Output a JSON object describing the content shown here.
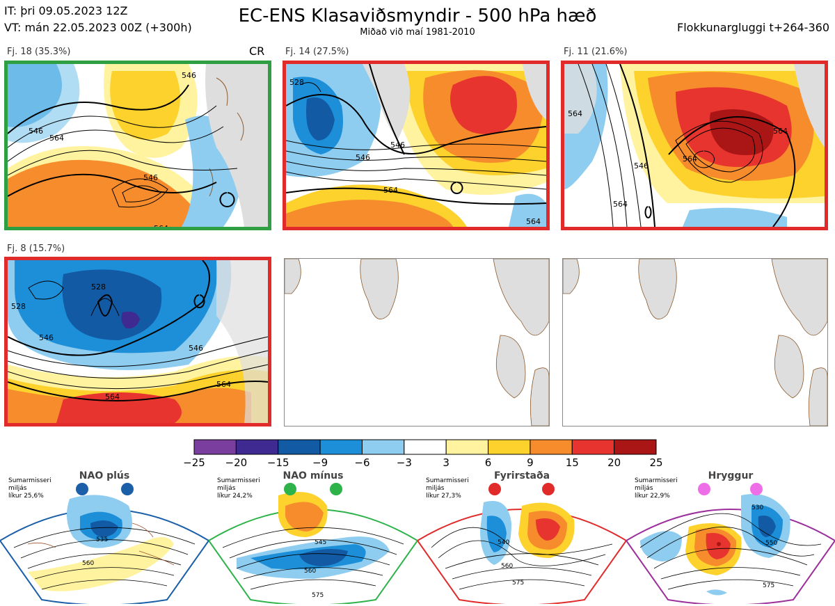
{
  "header": {
    "it": "IT: þri 09.05.2023 12Z",
    "vt": "VT: mán 22.05.2023 00Z  (+300h)",
    "title": "EC-ENS Klasaviðsmyndir - 500 hPa hæð",
    "subtitle": "Miðað við maí 1981-2010",
    "window": "Flokkunargluggi t+264-360",
    "cr": "CR"
  },
  "panels": [
    {
      "label": "Fj. 18 (35.3%)",
      "border": "#2ea043",
      "contours": [
        "564",
        "546",
        "546",
        "564",
        "546"
      ]
    },
    {
      "label": "Fj. 14 (27.5%)",
      "border": "#e12b2b",
      "contours": [
        "528",
        "546",
        "564",
        "546",
        "564"
      ]
    },
    {
      "label": "Fj. 11 (21.6%)",
      "border": "#e12b2b",
      "contours": [
        "546",
        "564",
        "564",
        "564",
        "564"
      ]
    },
    {
      "label": "Fj. 8 (15.7%)",
      "border": "#e12b2b",
      "contours": [
        "528",
        "528",
        "546",
        "546",
        "564",
        "564"
      ]
    }
  ],
  "colors": {
    "green": "#2ea043",
    "red": "#e12b2b",
    "blue": "#1a5fa8",
    "purple": "#9b2f9b",
    "land": "#dedede"
  },
  "chart_data": {
    "type": "heatmap",
    "colorbar": {
      "ticks": [
        "−25",
        "−20",
        "−15",
        "−9",
        "−6",
        "−3",
        "3",
        "6",
        "9",
        "15",
        "20",
        "25"
      ],
      "colors": [
        "#7a3e9e",
        "#3f2a92",
        "#135aa5",
        "#1d8fd8",
        "#8ecdf0",
        "#ffffff",
        "#fff3a0",
        "#fdd22c",
        "#f68c2c",
        "#e8342f",
        "#aa1616"
      ]
    },
    "regimes": [
      {
        "name": "NAO plús",
        "note": [
          "Sumarmisseri",
          "miljás",
          "líkur 25,6%"
        ],
        "contours": [
          "535",
          "560"
        ],
        "dot_color": "#1a5fa8",
        "border": "#1a5fa8"
      },
      {
        "name": "NAO mínus",
        "note": [
          "Sumarmisseri",
          "miljás",
          "líkur 24,2%"
        ],
        "contours": [
          "545",
          "560",
          "575"
        ],
        "dot_color": "#2db34a",
        "border": "#2db34a"
      },
      {
        "name": "Fyrirstaða",
        "note": [
          "Sumarmisseri",
          "miljás",
          "líkur 27,3%"
        ],
        "contours": [
          "540",
          "560",
          "575"
        ],
        "dot_color": "#e12b2b",
        "border": "#e12b2b"
      },
      {
        "name": "Hryggur",
        "note": [
          "Sumarmisseri",
          "miljás",
          "líkur 22,9%"
        ],
        "contours": [
          "530",
          "550",
          "575"
        ],
        "dot_color": "#ee6ee8",
        "border": "#9b2f9b"
      }
    ]
  }
}
